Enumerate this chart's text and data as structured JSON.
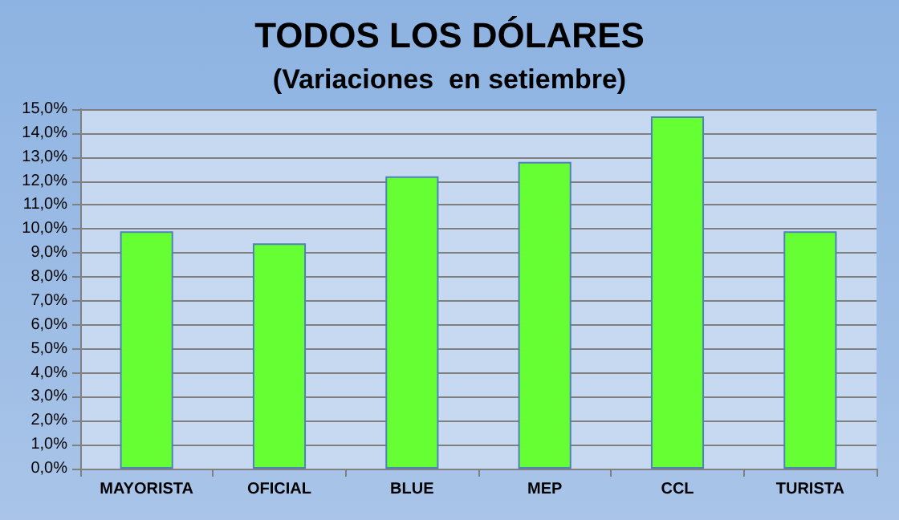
{
  "chart_data": {
    "type": "bar",
    "title": "TODOS LOS DÓLARES",
    "subtitle": "(Variaciones  en setiembre)",
    "categories": [
      "MAYORISTA",
      "OFICIAL",
      "BLUE",
      "MEP",
      "CCL",
      "TURISTA"
    ],
    "values": [
      9.9,
      9.4,
      12.2,
      12.8,
      14.7,
      9.9
    ],
    "color": "#66ff33",
    "ylim": [
      0,
      15
    ],
    "yticks": [
      {
        "value": 0,
        "label": "0,0%"
      },
      {
        "value": 1,
        "label": "1,0%"
      },
      {
        "value": 2,
        "label": "2,0%"
      },
      {
        "value": 3,
        "label": "3,0%"
      },
      {
        "value": 4,
        "label": "4,0%"
      },
      {
        "value": 5,
        "label": "5,0%"
      },
      {
        "value": 6,
        "label": "6,0%"
      },
      {
        "value": 7,
        "label": "7,0%"
      },
      {
        "value": 8,
        "label": "8,0%"
      },
      {
        "value": 9,
        "label": "9,0%"
      },
      {
        "value": 10,
        "label": "10,0%"
      },
      {
        "value": 11,
        "label": "11,0%"
      },
      {
        "value": 12,
        "label": "12,0%"
      },
      {
        "value": 13,
        "label": "13,0%"
      },
      {
        "value": 14,
        "label": "14,0%"
      },
      {
        "value": 15,
        "label": "15,0%"
      }
    ],
    "grid": "y"
  }
}
